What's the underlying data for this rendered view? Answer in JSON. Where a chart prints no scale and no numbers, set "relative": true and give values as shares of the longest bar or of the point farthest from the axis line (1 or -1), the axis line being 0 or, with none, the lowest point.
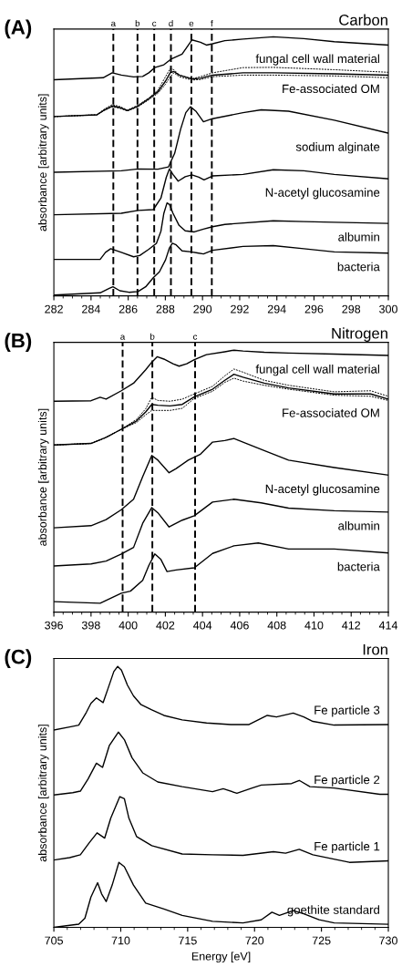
{
  "chart_data": [
    {
      "type": "line",
      "relative": true,
      "title": "Carbon",
      "annotations": [
        "(A)"
      ],
      "ylabel": "absorbance [arbitrary units]",
      "xlim": [
        282,
        300
      ],
      "xticks": [
        282,
        284,
        286,
        288,
        290,
        292,
        294,
        296,
        298,
        300
      ],
      "tick_labels": "x",
      "legend": false,
      "line_style": "solid",
      "ref_lines": [
        {
          "axis": "x",
          "value": 285.2,
          "label": "a",
          "color": "#000000",
          "line_style": "dashed"
        },
        {
          "axis": "x",
          "value": 286.5,
          "label": "b",
          "color": "#000000",
          "line_style": "dashed"
        },
        {
          "axis": "x",
          "value": 287.4,
          "label": "c",
          "color": "#000000",
          "line_style": "dashed"
        },
        {
          "axis": "x",
          "value": 288.3,
          "label": "d",
          "color": "#000000",
          "line_style": "dashed"
        },
        {
          "axis": "x",
          "value": 289.4,
          "label": "e",
          "color": "#000000",
          "line_style": "dashed"
        },
        {
          "axis": "x",
          "value": 290.5,
          "label": "f",
          "color": "#000000",
          "line_style": "dashed"
        }
      ],
      "series": [
        {
          "name": "fungal cell wall material",
          "color": "#000000",
          "x": [
            282,
            284.65,
            285.14,
            285.63,
            286.29,
            286.78,
            287.11,
            287.43,
            287.92,
            288.33,
            288.9,
            289.43,
            289.89,
            290.21,
            290.54,
            291.2,
            292.18,
            293.81,
            295.45,
            297.09,
            300
          ],
          "values": [
            0.834,
            0.842,
            0.861,
            0.852,
            0.845,
            0.847,
            0.861,
            0.881,
            0.892,
            0.915,
            0.933,
            0.988,
            0.979,
            0.968,
            0.973,
            0.985,
            0.991,
            1.0,
            0.993,
            0.981,
            0.968
          ]
        },
        {
          "name": "Fe-associated OM",
          "color": "#000000",
          "x": [
            282,
            284.32,
            284.73,
            285.14,
            285.55,
            285.96,
            286.53,
            287.11,
            287.6,
            288.01,
            288.26,
            288.46,
            288.75,
            289.43,
            289.89,
            290.54,
            292.18,
            293.81,
            297.09,
            300
          ],
          "values": [
            0.692,
            0.699,
            0.718,
            0.733,
            0.727,
            0.715,
            0.733,
            0.761,
            0.788,
            0.829,
            0.861,
            0.866,
            0.852,
            0.837,
            0.84,
            0.852,
            0.861,
            0.861,
            0.857,
            0.852
          ]
        },
        {
          "color": "#000000",
          "line_style": "dashed",
          "x": [
            282,
            284.32,
            284.73,
            285.14,
            285.55,
            285.96,
            286.53,
            287.11,
            287.6,
            288.01,
            288.26,
            288.46,
            288.75,
            289.43,
            289.89,
            290.54,
            292.18,
            293.81,
            297.09,
            300
          ],
          "values": [
            0.692,
            0.699,
            0.722,
            0.738,
            0.731,
            0.717,
            0.736,
            0.764,
            0.794,
            0.846,
            0.877,
            0.873,
            0.852,
            0.838,
            0.846,
            0.861,
            0.881,
            0.882,
            0.873,
            0.863
          ]
        },
        {
          "color": "#000000",
          "line_style": "dashed",
          "x": [
            282,
            284.32,
            284.73,
            285.14,
            285.55,
            285.96,
            286.53,
            287.11,
            287.6,
            288.01,
            288.26,
            288.46,
            288.75,
            289.43,
            289.89,
            290.54,
            292.18,
            293.81,
            297.09,
            300
          ],
          "values": [
            0.692,
            0.699,
            0.716,
            0.73,
            0.724,
            0.714,
            0.73,
            0.757,
            0.782,
            0.817,
            0.846,
            0.861,
            0.846,
            0.833,
            0.835,
            0.846,
            0.852,
            0.852,
            0.849,
            0.842
          ]
        },
        {
          "name": "sodium alginate",
          "color": "#000000",
          "x": [
            282,
            285.63,
            286.53,
            287.6,
            288.17,
            288.5,
            288.82,
            289.1,
            289.35,
            289.64,
            290.05,
            290.54,
            292.18,
            293.16,
            294.63,
            297.09,
            300
          ],
          "values": [
            0.477,
            0.483,
            0.49,
            0.489,
            0.498,
            0.55,
            0.643,
            0.707,
            0.73,
            0.713,
            0.672,
            0.684,
            0.707,
            0.718,
            0.713,
            0.678,
            0.628
          ]
        },
        {
          "name": "N-acetyl glucosamine",
          "color": "#000000",
          "x": [
            282,
            285.63,
            286.53,
            287.35,
            287.76,
            288.05,
            288.22,
            288.41,
            288.69,
            289.07,
            289.43,
            289.8,
            290.08,
            290.54,
            292.18,
            293.81,
            295.45,
            297.09,
            300
          ],
          "values": [
            0.313,
            0.319,
            0.33,
            0.333,
            0.377,
            0.458,
            0.49,
            0.469,
            0.443,
            0.46,
            0.467,
            0.458,
            0.448,
            0.463,
            0.469,
            0.487,
            0.483,
            0.469,
            0.452
          ]
        },
        {
          "name": "albumin",
          "color": "#000000",
          "x": [
            282,
            284.49,
            284.78,
            285.06,
            285.63,
            286.29,
            286.62,
            287.11,
            287.52,
            287.76,
            287.92,
            288.09,
            288.22,
            288.41,
            288.74,
            289.07,
            289.56,
            290.05,
            290.54,
            291.2,
            293.81,
            295.45,
            297.09,
            300
          ],
          "values": [
            0.141,
            0.141,
            0.168,
            0.182,
            0.168,
            0.151,
            0.156,
            0.18,
            0.203,
            0.249,
            0.319,
            0.359,
            0.353,
            0.319,
            0.272,
            0.251,
            0.247,
            0.258,
            0.267,
            0.276,
            0.29,
            0.287,
            0.284,
            0.28
          ]
        },
        {
          "name": "bacteria",
          "color": "#000000",
          "x": [
            282,
            284.49,
            284.98,
            285.18,
            285.55,
            286.04,
            286.53,
            286.94,
            287.35,
            287.68,
            288.01,
            288.22,
            288.38,
            288.58,
            288.9,
            289.4,
            289.72,
            290.05,
            290.54,
            292.18,
            293.81,
            295.45,
            297.09,
            300
          ],
          "values": [
            0.003,
            0.012,
            0.029,
            0.035,
            0.02,
            0.014,
            0.017,
            0.035,
            0.07,
            0.093,
            0.139,
            0.185,
            0.203,
            0.197,
            0.174,
            0.17,
            0.166,
            0.162,
            0.176,
            0.191,
            0.194,
            0.182,
            0.17,
            0.165
          ]
        }
      ]
    },
    {
      "type": "line",
      "relative": true,
      "title": "Nitrogen",
      "annotations": [
        "(B)"
      ],
      "ylabel": "absorbance [arbitrary units]",
      "xlim": [
        396,
        414
      ],
      "xticks": [
        396,
        398,
        400,
        402,
        404,
        406,
        408,
        410,
        412,
        414
      ],
      "tick_labels": "x",
      "legend": false,
      "line_style": "solid",
      "ref_lines": [
        {
          "axis": "x",
          "value": 399.7,
          "label": "a",
          "color": "#000000",
          "line_style": "dashed"
        },
        {
          "axis": "x",
          "value": 401.3,
          "label": "b",
          "color": "#000000",
          "line_style": "dashed"
        },
        {
          "axis": "x",
          "value": 403.6,
          "label": "c",
          "color": "#000000",
          "line_style": "dashed"
        }
      ],
      "series": [
        {
          "name": "fungal cell wall material",
          "color": "#000000",
          "x": [
            396,
            398.0,
            398.49,
            398.81,
            399.63,
            400.29,
            400.94,
            401.27,
            401.56,
            401.92,
            402.41,
            402.74,
            403.15,
            403.56,
            404.21,
            405.2,
            405.69,
            406.18,
            407.32,
            408.63,
            411.09,
            414
          ],
          "values": [
            0.805,
            0.807,
            0.82,
            0.813,
            0.845,
            0.874,
            0.925,
            0.954,
            0.975,
            0.966,
            0.948,
            0.939,
            0.948,
            0.964,
            0.983,
            0.994,
            1.0,
            0.997,
            0.992,
            0.989,
            0.985,
            0.98
          ]
        },
        {
          "name": "Fe-associated OM",
          "color": "#000000",
          "x": [
            396,
            398.0,
            398.81,
            399.63,
            400.45,
            400.94,
            401.27,
            401.6,
            402.25,
            402.91,
            403.56,
            404.54,
            405.2,
            405.69,
            406.18,
            407.32,
            408.63,
            411.09,
            413.05,
            414
          ],
          "values": [
            0.638,
            0.644,
            0.667,
            0.698,
            0.73,
            0.764,
            0.793,
            0.79,
            0.787,
            0.793,
            0.822,
            0.851,
            0.885,
            0.908,
            0.897,
            0.874,
            0.856,
            0.833,
            0.833,
            0.813
          ]
        },
        {
          "color": "#000000",
          "line_style": "dashed",
          "x": [
            396,
            398.0,
            398.81,
            399.63,
            400.45,
            400.94,
            401.27,
            401.6,
            402.25,
            402.91,
            403.56,
            404.54,
            405.2,
            405.69,
            406.18,
            407.32,
            408.63,
            411.09,
            413.05,
            414
          ],
          "values": [
            0.638,
            0.644,
            0.667,
            0.698,
            0.736,
            0.776,
            0.82,
            0.808,
            0.805,
            0.813,
            0.833,
            0.862,
            0.902,
            0.928,
            0.916,
            0.885,
            0.866,
            0.841,
            0.845,
            0.824
          ]
        },
        {
          "color": "#000000",
          "line_style": "dashed",
          "x": [
            396,
            398.0,
            398.81,
            399.63,
            400.45,
            400.94,
            401.27,
            401.6,
            402.25,
            402.91,
            403.56,
            404.54,
            405.2,
            405.69,
            406.18,
            407.32,
            408.63,
            411.09,
            413.05,
            414
          ],
          "values": [
            0.638,
            0.644,
            0.667,
            0.698,
            0.724,
            0.753,
            0.77,
            0.77,
            0.77,
            0.778,
            0.816,
            0.843,
            0.877,
            0.893,
            0.882,
            0.866,
            0.851,
            0.828,
            0.824,
            0.808
          ]
        },
        {
          "name": "N-acetyl glucosamine",
          "color": "#000000",
          "x": [
            396,
            398.0,
            398.81,
            399.63,
            400.29,
            400.78,
            401.27,
            401.6,
            402.2,
            402.58,
            403.23,
            403.89,
            404.54,
            405.2,
            405.69,
            406.18,
            407.32,
            408.63,
            411.09,
            414
          ],
          "values": [
            0.322,
            0.33,
            0.353,
            0.391,
            0.431,
            0.517,
            0.598,
            0.58,
            0.532,
            0.548,
            0.58,
            0.603,
            0.649,
            0.655,
            0.663,
            0.649,
            0.617,
            0.58,
            0.552,
            0.523
          ]
        },
        {
          "name": "albumin",
          "color": "#000000",
          "x": [
            396,
            398.0,
            398.81,
            399.63,
            400.29,
            400.78,
            401.27,
            401.6,
            402.2,
            402.91,
            403.56,
            404.54,
            405.69,
            407.16,
            408.63,
            411.09,
            414
          ],
          "values": [
            0.176,
            0.184,
            0.195,
            0.222,
            0.247,
            0.339,
            0.399,
            0.379,
            0.325,
            0.351,
            0.368,
            0.42,
            0.431,
            0.417,
            0.397,
            0.387,
            0.382
          ]
        },
        {
          "name": "bacteria",
          "color": "#000000",
          "x": [
            396,
            398.49,
            399.63,
            400.12,
            400.78,
            401.11,
            401.43,
            401.76,
            402.09,
            402.58,
            403.56,
            404.54,
            405.69,
            407.0,
            408.63,
            411.09,
            414
          ],
          "values": [
            0.04,
            0.034,
            0.072,
            0.08,
            0.121,
            0.178,
            0.222,
            0.201,
            0.155,
            0.161,
            0.169,
            0.224,
            0.253,
            0.264,
            0.241,
            0.241,
            0.226
          ]
        }
      ]
    },
    {
      "type": "line",
      "relative": true,
      "title": "Iron",
      "annotations": [
        "(C)"
      ],
      "xlabel": "Energy [eV]",
      "ylabel": "absorbance [arbitrary units]",
      "xlim": [
        705,
        730
      ],
      "xticks": [
        705,
        710,
        715,
        720,
        725,
        730
      ],
      "tick_labels": "x",
      "legend": false,
      "line_style": "solid",
      "series": [
        {
          "name": "Fe particle 3",
          "color": "#000000",
          "x": [
            705,
            706.18,
            706.86,
            707.43,
            707.77,
            708.18,
            708.68,
            709.02,
            709.48,
            709.77,
            710.05,
            710.5,
            710.95,
            711.52,
            712.32,
            713.23,
            714.59,
            716.41,
            718.23,
            719.59,
            720.27,
            720.95,
            721.64,
            722.89,
            723.68,
            724.36,
            725.95,
            730
          ],
          "values": [
            0.756,
            0.768,
            0.775,
            0.824,
            0.858,
            0.879,
            0.861,
            0.911,
            0.98,
            1.0,
            0.986,
            0.928,
            0.887,
            0.853,
            0.833,
            0.812,
            0.795,
            0.783,
            0.777,
            0.777,
            0.795,
            0.812,
            0.806,
            0.821,
            0.806,
            0.789,
            0.775,
            0.777
          ]
        },
        {
          "name": "Fe particle 2",
          "color": "#000000",
          "x": [
            705,
            706.41,
            706.98,
            707.55,
            708.18,
            708.64,
            709.14,
            709.82,
            710.27,
            710.84,
            711.64,
            712.77,
            714.59,
            716.86,
            717.66,
            718.68,
            719.82,
            720.5,
            722.77,
            723.34,
            724.14,
            725.95,
            729.36,
            730
          ],
          "values": [
            0.507,
            0.516,
            0.522,
            0.568,
            0.629,
            0.613,
            0.696,
            0.748,
            0.719,
            0.65,
            0.592,
            0.557,
            0.539,
            0.52,
            0.531,
            0.514,
            0.534,
            0.545,
            0.551,
            0.563,
            0.539,
            0.534,
            0.51,
            0.51
          ]
        },
        {
          "name": "Fe particle 1",
          "color": "#000000",
          "x": [
            705,
            706.18,
            706.98,
            707.66,
            708.23,
            708.8,
            709.25,
            709.93,
            710.27,
            710.61,
            711.18,
            712.32,
            714.59,
            716.86,
            719.14,
            721.41,
            722.32,
            723.34,
            724.36,
            727.09,
            730
          ],
          "values": [
            0.258,
            0.267,
            0.278,
            0.325,
            0.362,
            0.342,
            0.418,
            0.501,
            0.493,
            0.418,
            0.348,
            0.313,
            0.281,
            0.278,
            0.276,
            0.29,
            0.284,
            0.299,
            0.278,
            0.249,
            0.255
          ]
        },
        {
          "name": "goethite standard",
          "color": "#000000",
          "x": [
            705,
            706.86,
            707.32,
            707.77,
            708.27,
            708.57,
            708.91,
            709.36,
            709.86,
            710.27,
            710.95,
            711.86,
            713.23,
            714.59,
            716.86,
            719.14,
            720.5,
            721.3,
            721.86,
            722.89,
            723.68,
            724.82,
            725.95,
            730
          ],
          "values": [
            0.0,
            0.012,
            0.035,
            0.116,
            0.171,
            0.128,
            0.099,
            0.162,
            0.249,
            0.232,
            0.162,
            0.093,
            0.07,
            0.046,
            0.023,
            0.017,
            0.029,
            0.058,
            0.046,
            0.064,
            0.052,
            0.029,
            0.017,
            0.012
          ]
        }
      ]
    }
  ]
}
